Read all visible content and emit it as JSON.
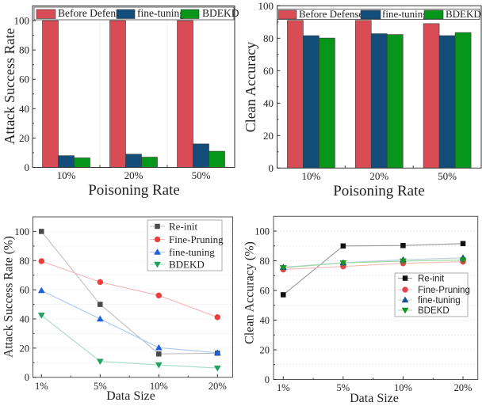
{
  "figure": {
    "description": "Four-panel figure: bar charts by poisoning rate (top) and line charts by data size (bottom)"
  },
  "chart_data": [
    {
      "type": "bar",
      "title": "",
      "xlabel": "Poisoning Rate",
      "ylabel": "Attack Success Rate",
      "categories": [
        "10%",
        "20%",
        "50%"
      ],
      "series": [
        {
          "name": "Before Defense",
          "color": "#d94c56",
          "values": [
            100,
            100,
            100
          ]
        },
        {
          "name": "fine-tuning",
          "color": "#134d7a",
          "values": [
            8,
            9,
            16
          ]
        },
        {
          "name": "BDEKD",
          "color": "#06961a",
          "values": [
            6.5,
            7,
            11
          ]
        }
      ],
      "ylim": [
        0,
        110
      ],
      "yticks": [
        0,
        20,
        40,
        60,
        80,
        100
      ],
      "grid": false,
      "legend": "top"
    },
    {
      "type": "bar",
      "title": "",
      "xlabel": "Poisoning Rate",
      "ylabel": "Clean Accuracy",
      "categories": [
        "10%",
        "20%",
        "50%"
      ],
      "series": [
        {
          "name": "Before Defense",
          "color": "#d94c56",
          "values": [
            91,
            91,
            89
          ]
        },
        {
          "name": "fine-tuning",
          "color": "#134d7a",
          "values": [
            81.6,
            82.8,
            81.6
          ]
        },
        {
          "name": "BDEKD",
          "color": "#06961a",
          "values": [
            80.1,
            82.3,
            83.5
          ]
        }
      ],
      "ylim": [
        0,
        100
      ],
      "yticks": [
        0,
        20,
        40,
        60,
        80,
        100
      ],
      "grid": false,
      "legend": "top"
    },
    {
      "type": "line",
      "title": "",
      "xlabel": "Data Size",
      "ylabel": "Attack Success Rate (%)",
      "categories": [
        "1%",
        "5%",
        "10%",
        "20%"
      ],
      "series": [
        {
          "name": "Re-init",
          "marker": "square",
          "marker_color": "#4a4a4a",
          "line_color": "#c0c0c0",
          "values": [
            100,
            50,
            16,
            16.5
          ]
        },
        {
          "name": "Fine-Pruning",
          "marker": "circle",
          "marker_color": "#f23c3c",
          "line_color": "#f5b5b5",
          "values": [
            79.6,
            65.3,
            56.1,
            41.2
          ]
        },
        {
          "name": "fine-tuning",
          "marker": "triangle-up",
          "marker_color": "#1c5fe0",
          "line_color": "#aac6f2",
          "values": [
            59.5,
            40,
            20.3,
            16.8
          ]
        },
        {
          "name": "BDEKD",
          "marker": "triangle-down",
          "marker_color": "#1fa15f",
          "line_color": "#a6dcc2",
          "values": [
            42.5,
            10.9,
            8.5,
            6.3
          ]
        }
      ],
      "ylim": [
        0,
        110
      ],
      "yticks": [
        0,
        20,
        40,
        60,
        80,
        100
      ],
      "grid": true,
      "legend": "top-right"
    },
    {
      "type": "line",
      "title": "",
      "xlabel": "Data Size",
      "ylabel": "Clean Accuracy (%)",
      "categories": [
        "1%",
        "5%",
        "10%",
        "20%"
      ],
      "series": [
        {
          "name": "Re-init",
          "marker": "square",
          "marker_color": "#111111",
          "line_color": "#9a9a9a",
          "values": [
            57.1,
            90,
            90.3,
            91.6
          ]
        },
        {
          "name": "Fine-Pruning",
          "marker": "circle",
          "marker_color": "#e0474c",
          "line_color": "#f3b8b8",
          "values": [
            74.1,
            76.2,
            78.3,
            79.4
          ]
        },
        {
          "name": "fine-tuning",
          "marker": "triangle-up",
          "marker_color": "#1b4f8f",
          "line_color": "#b9cde0",
          "values": [
            75.7,
            78.7,
            80.7,
            82
          ]
        },
        {
          "name": "BDEKD",
          "marker": "triangle-down",
          "marker_color": "#13961f",
          "line_color": "#9fd89f",
          "values": [
            75.3,
            78.6,
            79.8,
            80.5
          ]
        }
      ],
      "ylim": [
        0,
        110
      ],
      "yticks": [
        0,
        20,
        40,
        60,
        80,
        100
      ],
      "grid": true,
      "legend": "right"
    }
  ]
}
